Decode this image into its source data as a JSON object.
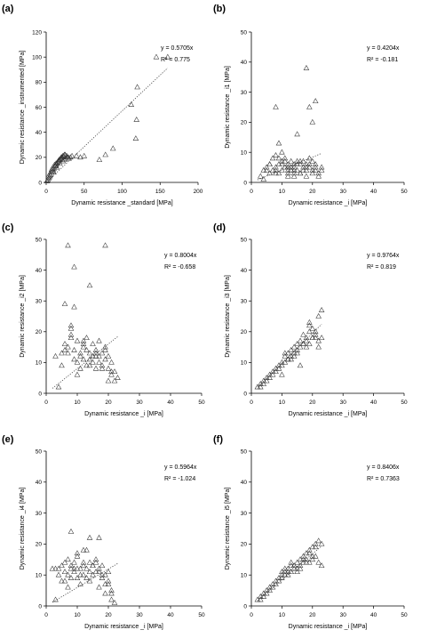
{
  "chart_data": [
    {
      "panel_label": "(a)",
      "type": "scatter",
      "xlabel": "Dynamic resistance _standard [MPa]",
      "ylabel": "Dynamic resistance _instrumented [MPa]",
      "xlim": [
        0,
        200
      ],
      "ylim": [
        0,
        120
      ],
      "xticks": [
        0,
        50,
        100,
        150,
        200
      ],
      "yticks": [
        0,
        20,
        40,
        60,
        80,
        100,
        120
      ],
      "equation": "y = 0.5705x",
      "r2": "R² = 0.775",
      "slope": 0.5705,
      "fit_x": [
        0,
        160
      ],
      "series": [
        {
          "marker": "triangle",
          "x": [
            1,
            2,
            3,
            4,
            5,
            6,
            7,
            8,
            9,
            10,
            11,
            12,
            13,
            14,
            15,
            16,
            17,
            18,
            19,
            20,
            21,
            22,
            23,
            24,
            25,
            27,
            29,
            30,
            32,
            34,
            3,
            5,
            7,
            9,
            11,
            13,
            15,
            17,
            19,
            21,
            23,
            8,
            12,
            16,
            20,
            24,
            28,
            10,
            14,
            18,
            22,
            26,
            40,
            45,
            50,
            70,
            78,
            88,
            112,
            118,
            119,
            120,
            145,
            160
          ],
          "y": [
            1,
            2,
            3,
            4,
            5,
            6,
            8,
            9,
            10,
            11,
            12,
            13,
            14,
            15,
            16,
            17,
            17,
            18,
            19,
            20,
            20,
            21,
            21,
            22,
            22,
            21,
            20,
            19,
            20,
            21,
            5,
            7,
            10,
            12,
            14,
            15,
            16,
            18,
            19,
            20,
            21,
            11,
            13,
            17,
            19,
            18,
            20,
            8,
            12,
            15,
            17,
            19,
            21,
            20,
            21,
            18,
            22,
            27,
            62,
            35,
            50,
            76,
            100,
            100
          ]
        }
      ]
    },
    {
      "panel_label": "(b)",
      "type": "scatter",
      "xlabel": "Dynamic resistance _i [MPa]",
      "ylabel": "Dynamic resistance _i1 [MPa]",
      "xlim": [
        0,
        50
      ],
      "ylim": [
        0,
        50
      ],
      "xticks": [
        0,
        10,
        20,
        30,
        40,
        50
      ],
      "yticks": [
        0,
        10,
        20,
        30,
        40,
        50
      ],
      "equation": "y = 0.4204x",
      "r2": "R² = -0.181",
      "slope": 0.4204,
      "fit_x": [
        2,
        23
      ],
      "series": [
        {
          "marker": "triangle",
          "x": [
            3,
            4,
            5,
            6,
            7,
            7,
            8,
            8,
            9,
            9,
            10,
            10,
            11,
            11,
            12,
            12,
            13,
            13,
            14,
            14,
            15,
            15,
            16,
            16,
            17,
            17,
            18,
            18,
            19,
            19,
            20,
            20,
            21,
            21,
            22,
            22,
            23,
            5,
            6,
            8,
            10,
            12,
            14,
            16,
            18,
            20,
            9,
            11,
            13,
            15,
            17,
            19,
            21,
            23,
            4,
            6,
            8,
            12,
            14,
            16,
            18,
            10,
            12,
            14,
            9,
            8,
            15,
            18,
            19,
            20,
            21
          ],
          "y": [
            2,
            4,
            5,
            6,
            8,
            4,
            5,
            9,
            6,
            3,
            4,
            7,
            5,
            8,
            3,
            6,
            7,
            4,
            5,
            6,
            4,
            7,
            3,
            6,
            5,
            7,
            4,
            2,
            6,
            5,
            3,
            7,
            4,
            5,
            3,
            2,
            5,
            4,
            6,
            4,
            6,
            4,
            3,
            7,
            5,
            4,
            8,
            7,
            5,
            6,
            4,
            8,
            6,
            4,
            1,
            3,
            3,
            2,
            4,
            3,
            6,
            10,
            5,
            2,
            13,
            25,
            16,
            38,
            25,
            20,
            27
          ]
        }
      ]
    },
    {
      "panel_label": "(c)",
      "type": "scatter",
      "xlabel": "Dynamic resistance _i [MPa]",
      "ylabel": "Dynamic resistance _i2 [MPa]",
      "xlim": [
        0,
        50
      ],
      "ylim": [
        0,
        50
      ],
      "xticks": [
        0,
        10,
        20,
        30,
        40,
        50
      ],
      "yticks": [
        0,
        10,
        20,
        30,
        40,
        50
      ],
      "equation": "y = 0.8004x",
      "r2": "R² = -0.658",
      "slope": 0.8004,
      "fit_x": [
        2,
        23
      ],
      "series": [
        {
          "marker": "triangle",
          "x": [
            3,
            4,
            5,
            6,
            6,
            7,
            8,
            8,
            9,
            9,
            10,
            10,
            11,
            11,
            12,
            12,
            13,
            13,
            14,
            14,
            15,
            15,
            16,
            16,
            17,
            17,
            18,
            18,
            19,
            19,
            20,
            20,
            21,
            21,
            22,
            22,
            23,
            5,
            7,
            9,
            11,
            13,
            15,
            17,
            19,
            21,
            10,
            12,
            14,
            16,
            18,
            20,
            6,
            8,
            9,
            14,
            19,
            7,
            8,
            12,
            16
          ],
          "y": [
            12,
            2,
            9,
            16,
            29,
            13,
            18,
            21,
            28,
            14,
            10,
            17,
            12,
            8,
            15,
            11,
            14,
            18,
            9,
            13,
            16,
            10,
            14,
            8,
            12,
            17,
            9,
            13,
            11,
            15,
            8,
            12,
            6,
            10,
            4,
            7,
            5,
            13,
            15,
            11,
            13,
            9,
            12,
            10,
            14,
            7,
            6,
            16,
            11,
            13,
            8,
            4,
            14,
            22,
            41,
            35,
            48,
            48,
            19,
            17,
            12
          ]
        }
      ]
    },
    {
      "panel_label": "(d)",
      "type": "scatter",
      "xlabel": "Dynamic resistance _i [MPa]",
      "ylabel": "Dynamic resistance _i3 [MPa]",
      "xlim": [
        0,
        50
      ],
      "ylim": [
        0,
        50
      ],
      "xticks": [
        0,
        10,
        20,
        30,
        40,
        50
      ],
      "yticks": [
        0,
        10,
        20,
        30,
        40,
        50
      ],
      "equation": "y = 0.9764x",
      "r2": "R² = 0.819",
      "slope": 0.9764,
      "fit_x": [
        2,
        23
      ],
      "series": [
        {
          "marker": "triangle",
          "x": [
            2,
            3,
            3,
            4,
            4,
            5,
            5,
            6,
            6,
            7,
            7,
            8,
            8,
            9,
            9,
            10,
            10,
            11,
            11,
            12,
            12,
            13,
            13,
            14,
            14,
            15,
            15,
            16,
            16,
            17,
            17,
            18,
            18,
            19,
            19,
            20,
            20,
            21,
            21,
            22,
            22,
            23,
            23,
            10,
            12,
            14,
            16,
            18,
            20,
            11,
            13,
            15,
            17,
            19,
            21,
            22,
            19
          ],
          "y": [
            2,
            3,
            2,
            3,
            4,
            4,
            5,
            5,
            6,
            6,
            7,
            7,
            8,
            8,
            9,
            9,
            10,
            10,
            12,
            11,
            13,
            12,
            14,
            13,
            15,
            14,
            16,
            15,
            17,
            16,
            19,
            17,
            18,
            16,
            20,
            18,
            21,
            19,
            20,
            17,
            25,
            18,
            27,
            6,
            11,
            12,
            9,
            15,
            18,
            13,
            11,
            13,
            16,
            23,
            18,
            15,
            22
          ]
        }
      ]
    },
    {
      "panel_label": "(e)",
      "type": "scatter",
      "xlabel": "Dynamic resistance _i [MPa]",
      "ylabel": "Dynamic resistance _i4 [MPa]",
      "xlim": [
        0,
        50
      ],
      "ylim": [
        0,
        50
      ],
      "xticks": [
        0,
        10,
        20,
        30,
        40,
        50
      ],
      "yticks": [
        0,
        10,
        20,
        30,
        40,
        50
      ],
      "equation": "y = 0.5964x",
      "r2": "R² = -1.024",
      "slope": 0.5964,
      "fit_x": [
        2,
        23
      ],
      "series": [
        {
          "marker": "triangle",
          "x": [
            2,
            3,
            4,
            5,
            6,
            6,
            7,
            7,
            8,
            8,
            9,
            9,
            10,
            10,
            11,
            11,
            12,
            12,
            13,
            13,
            14,
            14,
            15,
            15,
            16,
            16,
            17,
            17,
            18,
            18,
            19,
            19,
            20,
            20,
            21,
            21,
            22,
            4,
            6,
            8,
            10,
            12,
            14,
            16,
            18,
            20,
            5,
            9,
            11,
            13,
            15,
            17,
            19,
            21,
            7,
            3,
            8,
            10,
            14,
            17,
            12
          ],
          "y": [
            12,
            12,
            12,
            13,
            14,
            8,
            15,
            10,
            13,
            12,
            11,
            14,
            9,
            16,
            12,
            7,
            14,
            10,
            12,
            18,
            8,
            14,
            13,
            10,
            11,
            15,
            6,
            12,
            9,
            13,
            4,
            10,
            7,
            11,
            2,
            5,
            1,
            10,
            11,
            9,
            12,
            13,
            11,
            14,
            10,
            8,
            8,
            12,
            10,
            9,
            13,
            11,
            7,
            4,
            6,
            2,
            24,
            17,
            22,
            22,
            18
          ]
        }
      ]
    },
    {
      "panel_label": "(f)",
      "type": "scatter",
      "xlabel": "Dynamic resistance _i [MPa]",
      "ylabel": "Dynamic resistance _i5 [MPa]",
      "xlim": [
        0,
        50
      ],
      "ylim": [
        0,
        50
      ],
      "xticks": [
        0,
        10,
        20,
        30,
        40,
        50
      ],
      "yticks": [
        0,
        10,
        20,
        30,
        40,
        50
      ],
      "equation": "y = 0.8406x",
      "r2": "R² = 0.7363",
      "slope": 0.8406,
      "fit_x": [
        2,
        23
      ],
      "series": [
        {
          "marker": "triangle",
          "x": [
            2,
            3,
            3,
            4,
            4,
            5,
            5,
            6,
            6,
            7,
            7,
            8,
            8,
            9,
            9,
            10,
            10,
            11,
            11,
            12,
            12,
            13,
            13,
            14,
            14,
            15,
            15,
            16,
            16,
            17,
            17,
            18,
            18,
            19,
            19,
            20,
            20,
            21,
            21,
            22,
            22,
            23,
            23,
            10,
            12,
            14,
            16,
            18,
            20,
            11,
            13,
            15,
            17,
            19,
            21
          ],
          "y": [
            2,
            2,
            3,
            3,
            4,
            4,
            5,
            5,
            6,
            6,
            7,
            7,
            8,
            8,
            9,
            9,
            10,
            10,
            11,
            11,
            12,
            11,
            13,
            12,
            13,
            12,
            14,
            13,
            15,
            14,
            16,
            15,
            17,
            14,
            18,
            15,
            19,
            16,
            20,
            14,
            21,
            13,
            20,
            11,
            10,
            13,
            12,
            14,
            16,
            12,
            14,
            11,
            15,
            17,
            19
          ]
        }
      ]
    }
  ]
}
